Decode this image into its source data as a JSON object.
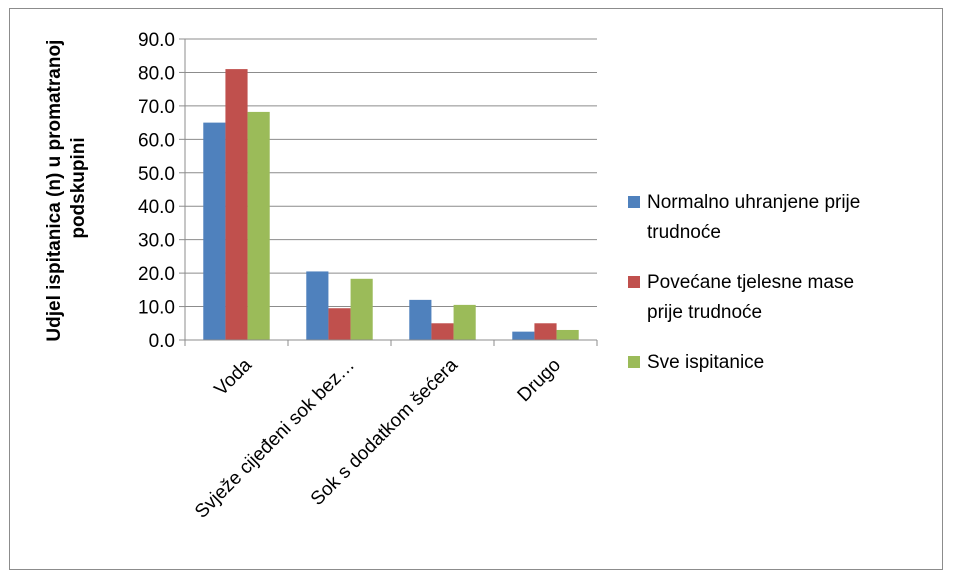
{
  "chart_data": {
    "type": "bar",
    "categories": [
      "Voda",
      "Svježe cijeđeni sok bez…",
      "Sok s dodatkom šećera",
      "Drugo"
    ],
    "series": [
      {
        "name": "Normalno uhranjene prije trudnoće",
        "values": [
          65.0,
          20.5,
          12.0,
          2.5
        ],
        "color": "#4f81bd"
      },
      {
        "name": "Povećane tjelesne mase prije trudnoće",
        "values": [
          81.0,
          9.5,
          5.0,
          5.0
        ],
        "color": "#c0504d"
      },
      {
        "name": "Sve ispitanice",
        "values": [
          68.2,
          18.3,
          10.5,
          3.0
        ],
        "color": "#9bbb59"
      }
    ],
    "legend_lines": [
      [
        "Normalno uhranjene prije",
        "trudnoće"
      ],
      [
        "Povećane tjelesne mase",
        "prije trudnoće"
      ],
      [
        "Sve ispitanice"
      ]
    ],
    "ylabel_lines": [
      "Udjel ispitanica (n) u promatranoj",
      "podskupini"
    ],
    "yticks": [
      "0.0",
      "10.0",
      "20.0",
      "30.0",
      "40.0",
      "50.0",
      "60.0",
      "70.0",
      "80.0",
      "90.0"
    ],
    "ylim": [
      0,
      90
    ],
    "grid": true,
    "legend_position": "right"
  }
}
